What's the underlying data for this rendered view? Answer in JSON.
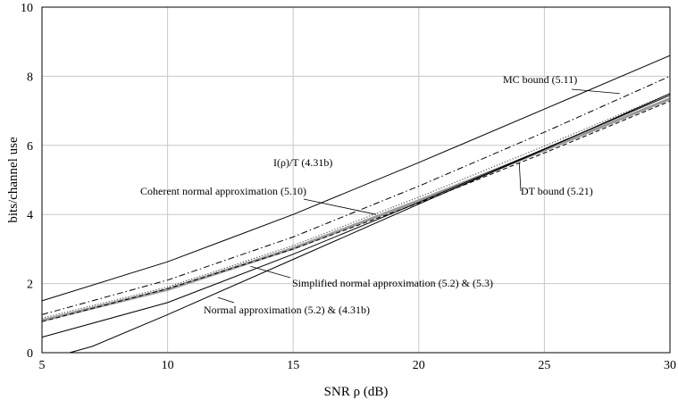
{
  "chart_data": {
    "type": "line",
    "xlabel": "SNR ρ (dB)",
    "ylabel": "bits/channel use",
    "xlim": [
      5,
      30
    ],
    "ylim": [
      0,
      10
    ],
    "xticks": [
      5,
      10,
      15,
      20,
      25,
      30
    ],
    "yticks": [
      0,
      2,
      4,
      6,
      8,
      10
    ],
    "grid": true,
    "series": [
      {
        "name": "MC bound (5.11)",
        "style": "solid",
        "color": "#000000",
        "x": [
          5,
          10,
          15,
          20,
          25,
          30
        ],
        "y": [
          1.5,
          2.63,
          4.0,
          5.5,
          7.05,
          8.6
        ]
      },
      {
        "name": "I(ρ)/T (4.31b)",
        "style": "dashdot",
        "color": "#000000",
        "x": [
          5,
          10,
          15,
          20,
          25,
          30
        ],
        "y": [
          1.1,
          2.1,
          3.35,
          4.82,
          6.38,
          8.0
        ]
      },
      {
        "name": "Coherent normal approximation (5.10)",
        "style": "dotted",
        "color": "#555555",
        "x": [
          5,
          10,
          15,
          20,
          25,
          30
        ],
        "y": [
          1.0,
          1.9,
          3.1,
          4.5,
          5.98,
          7.5
        ]
      },
      {
        "name": "Simplified normal approximation (5.2) & (5.3)",
        "style": "solid-gray",
        "color": "#9a9a9a",
        "x": [
          5,
          10,
          15,
          20,
          25,
          30
        ],
        "y": [
          0.93,
          1.83,
          3.02,
          4.4,
          5.86,
          7.35
        ]
      },
      {
        "name": "Normal approximation (5.2) & (4.31b)",
        "style": "solid",
        "color": "#000000",
        "x": [
          5,
          10,
          15,
          20,
          25,
          30
        ],
        "y": [
          0.45,
          1.45,
          2.85,
          4.35,
          5.9,
          7.45
        ]
      },
      {
        "name": "DT bound (5.21)",
        "style": "dashed",
        "color": "#000000",
        "x": [
          5,
          10,
          15,
          20,
          25,
          30
        ],
        "y": [
          0.9,
          1.85,
          3.0,
          4.33,
          5.78,
          7.28
        ]
      },
      {
        "name": "",
        "style": "solid",
        "color": "#000000",
        "x": [
          6.1,
          7,
          10,
          15,
          20,
          25,
          30
        ],
        "y": [
          0.0,
          0.18,
          1.1,
          2.7,
          4.3,
          5.88,
          7.5
        ]
      }
    ],
    "annotations": [
      {
        "text": "MC bound (5.11)",
        "point_x": 28.0,
        "point_y": 7.5
      },
      {
        "text": "I(ρ)/T (4.31b)",
        "point_x": null,
        "point_y": null
      },
      {
        "text": "Coherent normal approximation (5.10)",
        "point_x": 18.3,
        "point_y": 4.0
      },
      {
        "text": "DT bound (5.21)",
        "point_x": 24.0,
        "point_y": 5.5
      },
      {
        "text": "Simplified normal approximation (5.2) & (5.3)",
        "point_x": 13.3,
        "point_y": 2.5
      },
      {
        "text": "Normal approximation (5.2) & (4.31b)",
        "point_x": 12.0,
        "point_y": 1.6
      }
    ]
  }
}
